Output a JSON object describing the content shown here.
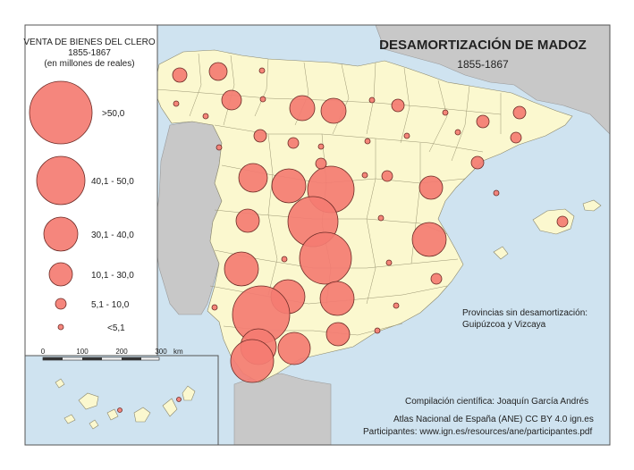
{
  "title": "DESAMORTIZACIÓN DE MADOZ",
  "subtitle": "1855-1867",
  "legend": {
    "title_line1": "VENTA DE BIENES DEL CLERO",
    "title_line2": "1855-1867",
    "title_line3": "(en millones de reales)",
    "classes": [
      {
        "label": ">50,0",
        "size_rank": 6
      },
      {
        "label": "40,1 - 50,0",
        "size_rank": 5
      },
      {
        "label": "30,1 - 40,0",
        "size_rank": 4
      },
      {
        "label": "10,1 - 30,0",
        "size_rank": 3
      },
      {
        "label": "5,1 - 10,0",
        "size_rank": 2
      },
      {
        "label": "<5,1",
        "size_rank": 1
      }
    ]
  },
  "scale": {
    "ticks": [
      "0",
      "100",
      "200",
      "300"
    ],
    "unit": "km"
  },
  "note_line1": "Provincias sin desamortización:",
  "note_line2": "Guipúzcoa y Vizcaya",
  "credits": {
    "compilation": "Compilación científica: Joaquín García Andrés",
    "atlas": "Atlas Nacional de España (ANE) CC BY 4.0 ign.es",
    "participants": "Participantes: www.ign.es/resources/ane/participantes.pdf"
  },
  "colors": {
    "bubble": "#f47c72",
    "land": "#fbf8cf",
    "sea": "#cfe3f0",
    "neighbor": "#c8c8c8"
  }
}
